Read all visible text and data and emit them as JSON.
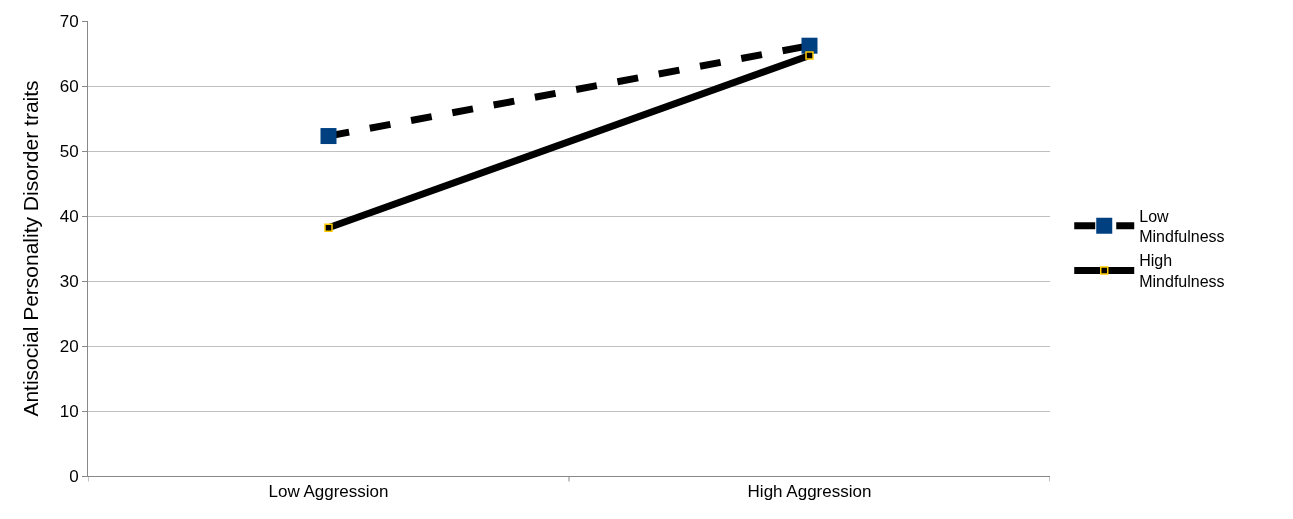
{
  "chart_data": {
    "type": "line",
    "ylabel": "Antisocial Personality Disorder traits",
    "categories": [
      "Low Aggression",
      "High Aggression"
    ],
    "series": [
      {
        "name": "Low Mindfulness",
        "color": "#000000",
        "colors": [
          "#004080",
          "#004080"
        ],
        "marker": "square",
        "line_style": "dashed",
        "values": [
          52.3,
          66.2
        ]
      },
      {
        "name": "High Mindfulness",
        "color": "#000000",
        "colors": [
          "#ffcc00",
          "#ffcc00"
        ],
        "marker": "square",
        "line_style": "solid",
        "values": [
          38.2,
          64.7
        ]
      }
    ],
    "ylim": [
      0,
      70
    ],
    "yticks": [
      0,
      10,
      20,
      30,
      40,
      50,
      60,
      70
    ],
    "grid": "y",
    "legend": "right"
  }
}
